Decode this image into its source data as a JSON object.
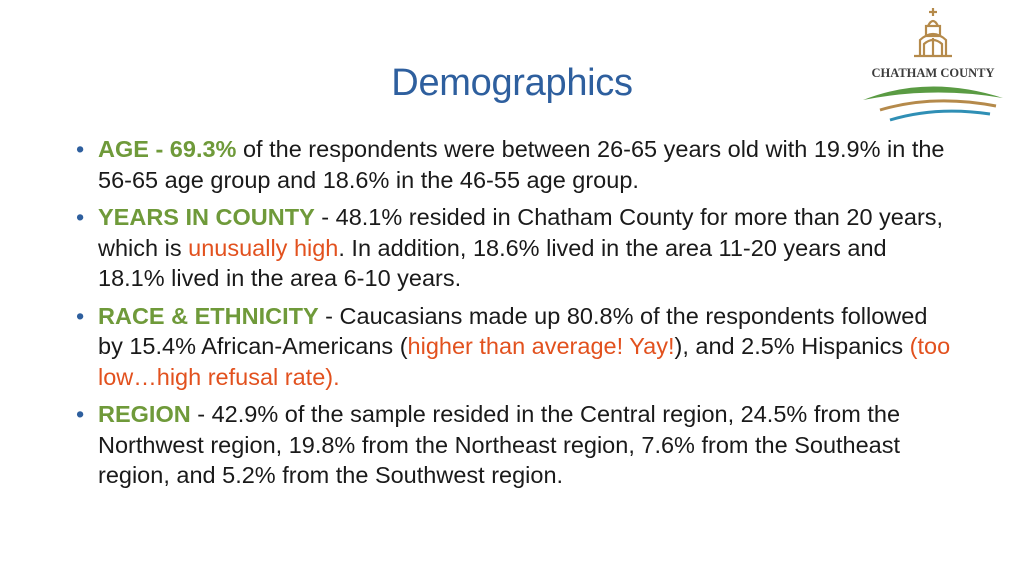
{
  "title": "Demographics",
  "logo": {
    "text": "CHATHAM COUNTY",
    "colors": {
      "brown": "#B58A4B",
      "green": "#5A9B43",
      "teal": "#2F8FB5"
    }
  },
  "bullets": [
    {
      "label": "AGE - 69.3%",
      "text": " of the respondents were between 26-65 years old with 19.9% in the 56-65 age group and 18.6% in the 46-55 age group."
    },
    {
      "label": "YEARS IN COUNTY",
      "pre": " - 48.1% resided in Chatham County for more than 20 years, which is ",
      "em": "unusually high",
      "post": ". In addition, 18.6% lived in the area 11-20 years and 18.1% lived in the area 6-10 years."
    },
    {
      "label": "RACE & ETHNICITY",
      "pre": " - Caucasians made up 80.8% of the respondents followed by 15.4% African-Americans (",
      "em": "higher than average! Yay!",
      "mid": "), and 2.5% Hispanics ",
      "em2": "(too low…high refusal rate)."
    },
    {
      "label": "REGION",
      "text": " - 42.9% of the sample resided in the Central region, 24.5% from the Northwest region, 19.8% from the Northeast region, 7.6% from the Southeast region, and 5.2% from the Southwest region."
    }
  ]
}
